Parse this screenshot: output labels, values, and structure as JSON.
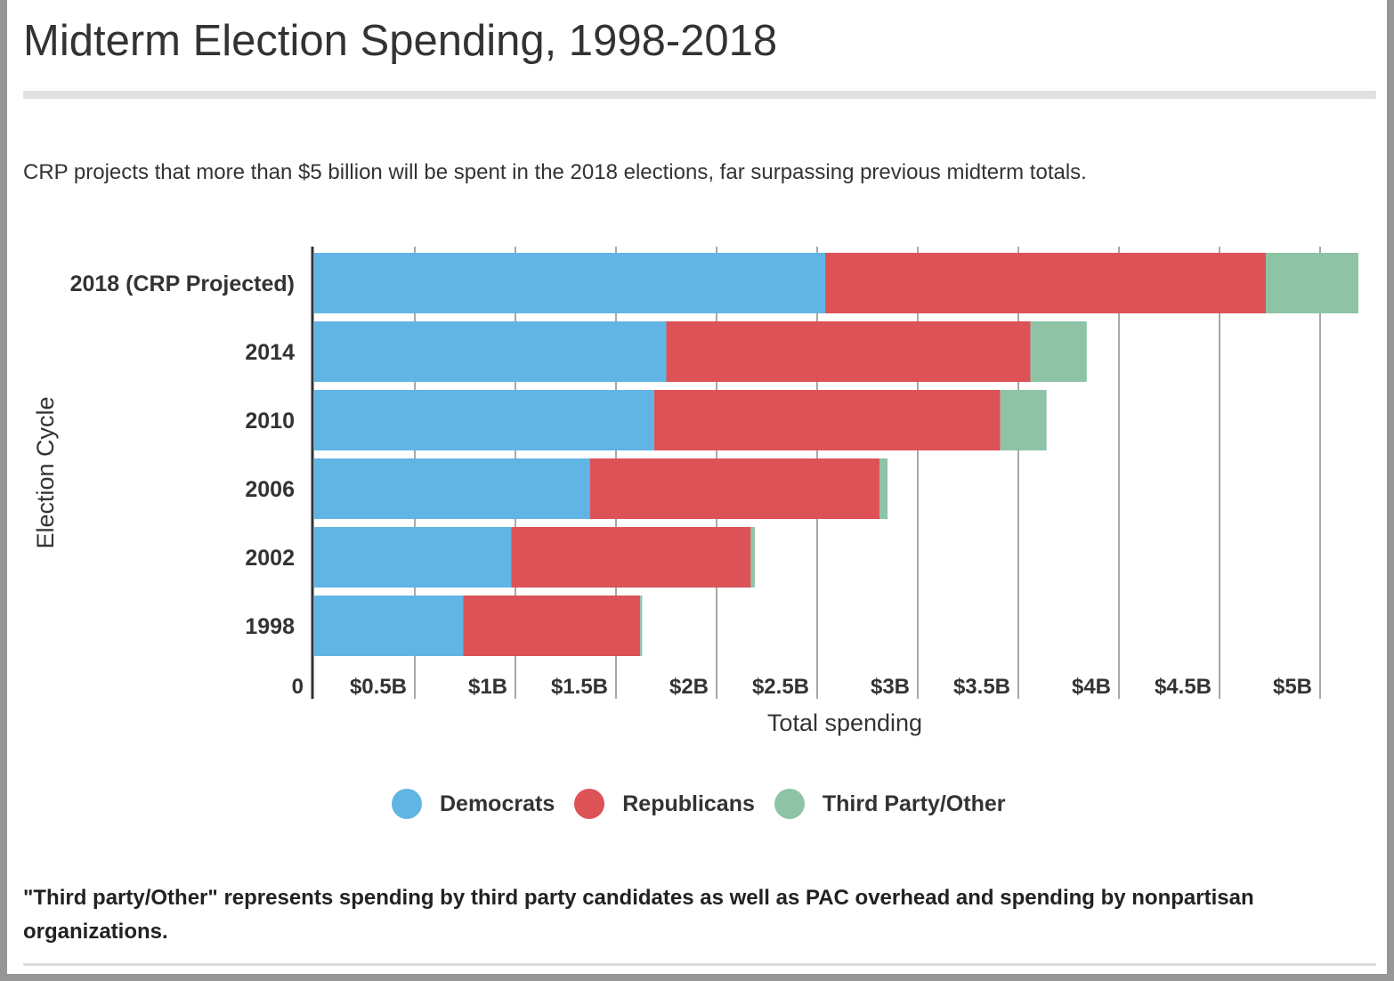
{
  "title": "Midterm Election Spending, 1998-2018",
  "subtitle": "CRP projects that more than $5 billion will be spent in the 2018 elections, far surpassing previous midterm totals.",
  "note": "\"Third party/Other\" represents spending by third party candidates as well as PAC overhead and spending by nonpartisan organizations.",
  "chart_data": {
    "type": "bar",
    "orientation": "horizontal",
    "stacked": true,
    "xlabel": "Total spending",
    "ylabel": "Election Cycle",
    "xlim": [
      0,
      5.2
    ],
    "units": "billions USD",
    "grid": true,
    "legend_position": "bottom",
    "xticks": [
      {
        "value": 0,
        "label": "0"
      },
      {
        "value": 0.5,
        "label": "$0.5B"
      },
      {
        "value": 1,
        "label": "$1B"
      },
      {
        "value": 1.5,
        "label": "$1.5B"
      },
      {
        "value": 2,
        "label": "$2B"
      },
      {
        "value": 2.5,
        "label": "$2.5B"
      },
      {
        "value": 3,
        "label": "$3B"
      },
      {
        "value": 3.5,
        "label": "$3.5B"
      },
      {
        "value": 4,
        "label": "$4B"
      },
      {
        "value": 4.5,
        "label": "$4.5B"
      },
      {
        "value": 5,
        "label": "$5B"
      }
    ],
    "categories": [
      "2018 (CRP Projected)",
      "2014",
      "2010",
      "2006",
      "2002",
      "1998"
    ],
    "series": [
      {
        "name": "Democrats",
        "color": "#60b5e5",
        "values": [
          2.54,
          1.75,
          1.69,
          1.37,
          0.98,
          0.74
        ]
      },
      {
        "name": "Republicans",
        "color": "#dd5257",
        "values": [
          2.19,
          1.81,
          1.72,
          1.44,
          1.19,
          0.88
        ]
      },
      {
        "name": "Third Party/Other",
        "color": "#8ec3a6",
        "values": [
          0.46,
          0.28,
          0.23,
          0.04,
          0.02,
          0.01
        ]
      }
    ]
  }
}
